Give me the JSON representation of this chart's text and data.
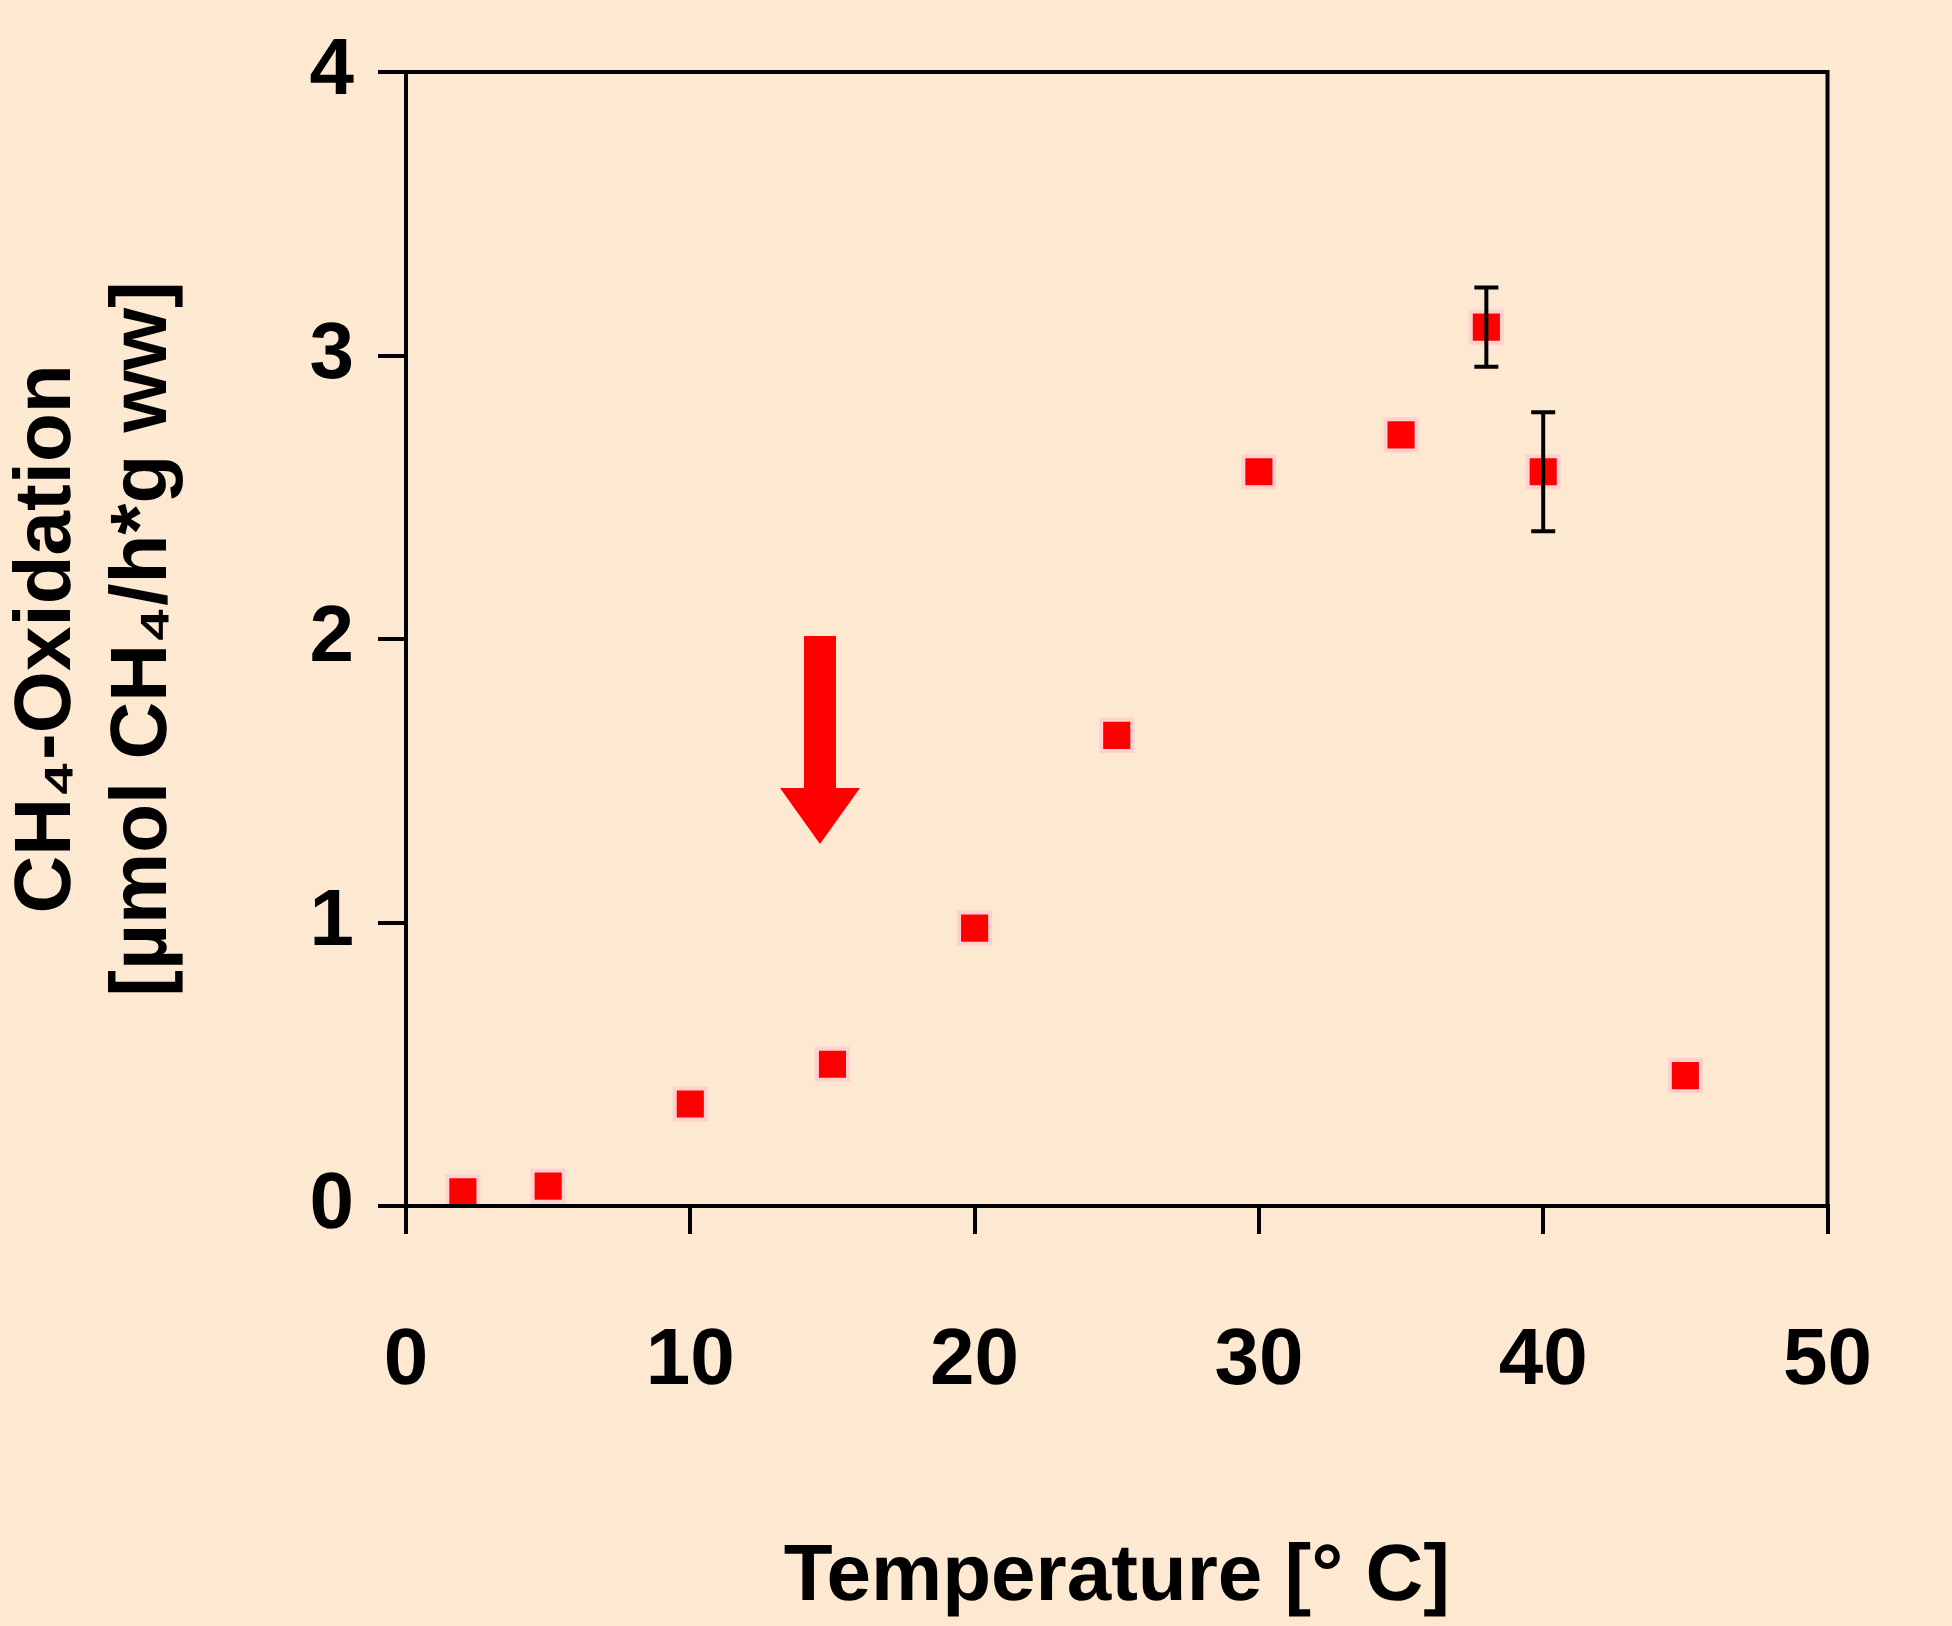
{
  "chart_data": {
    "type": "scatter",
    "xlabel": "Temperature [° C]",
    "ylabel": "CH₄-Oxidation\n[µmol CH₄/h*g ww]",
    "x": [
      2,
      5,
      10,
      15,
      20,
      25,
      30,
      35,
      38,
      40,
      45
    ],
    "values": [
      0.05,
      0.07,
      0.36,
      0.5,
      0.98,
      1.66,
      2.59,
      2.72,
      3.1,
      2.59,
      0.46
    ],
    "errors": [
      null,
      null,
      null,
      null,
      null,
      null,
      null,
      null,
      0.14,
      0.21,
      null
    ],
    "color": "#ff0000",
    "marker": "square",
    "xlim": [
      0,
      50
    ],
    "ylim": [
      0,
      4
    ],
    "xticks": [
      0,
      10,
      20,
      30,
      40,
      50
    ],
    "yticks": [
      0,
      1,
      2,
      3,
      4
    ]
  }
}
